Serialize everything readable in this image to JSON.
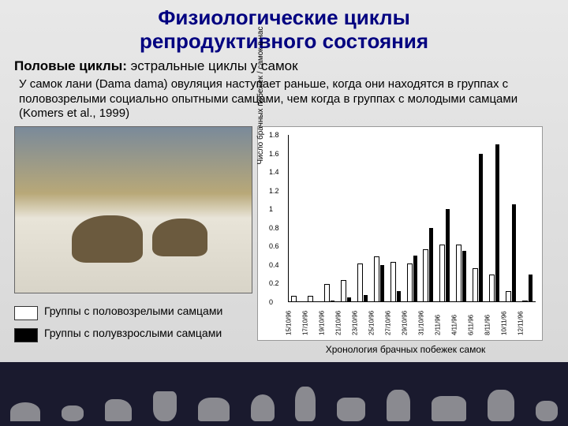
{
  "title_line1": "Физиологические циклы",
  "title_line2": "репродуктивного состояния",
  "subtitle_bold": "Половые циклы:",
  "subtitle_rest": " эстральные циклы у самок",
  "body": "У самок лани (Dama dama) овуляция наступает раньше, когда они находятся в группах с половозрелыми социально опытными самцами, чем когда в группах с молодыми самцами (Komers et al., 1999)",
  "legend_white": "Группы с половозрелыми самцами",
  "legend_black": "Группы с полувзрослыми самцами",
  "y_axis_label": "Число брачных побежек / самок в час",
  "chart_caption": "Хронология брачных побежек самок",
  "swatch_white_color": "#ffffff",
  "swatch_black_color": "#000000",
  "chart": {
    "ylim": [
      0,
      1.8
    ],
    "ytick_step": 0.2,
    "yticks": [
      "0",
      "0.2",
      "0.4",
      "0.6",
      "0.8",
      "1",
      "1.2",
      "1.4",
      "1.6",
      "1.8"
    ],
    "dates": [
      "15/10/96",
      "17/10/96",
      "19/10/96",
      "21/10/96",
      "23/10/96",
      "25/10/96",
      "27/10/96",
      "29/10/96",
      "31/10/96",
      "2/11/96",
      "4/11/96",
      "6/11/96",
      "8/11/96",
      "10/11/96",
      "12/11/96"
    ],
    "white_values": [
      0.05,
      0.05,
      0.18,
      0.22,
      0.4,
      0.48,
      0.42,
      0.4,
      0.55,
      0.6,
      0.6,
      0.35,
      0.28,
      0.1,
      0.0
    ],
    "black_values": [
      0.0,
      0.0,
      0.02,
      0.05,
      0.08,
      0.4,
      0.12,
      0.5,
      0.8,
      1.0,
      0.55,
      1.6,
      1.7,
      1.05,
      0.3
    ]
  }
}
